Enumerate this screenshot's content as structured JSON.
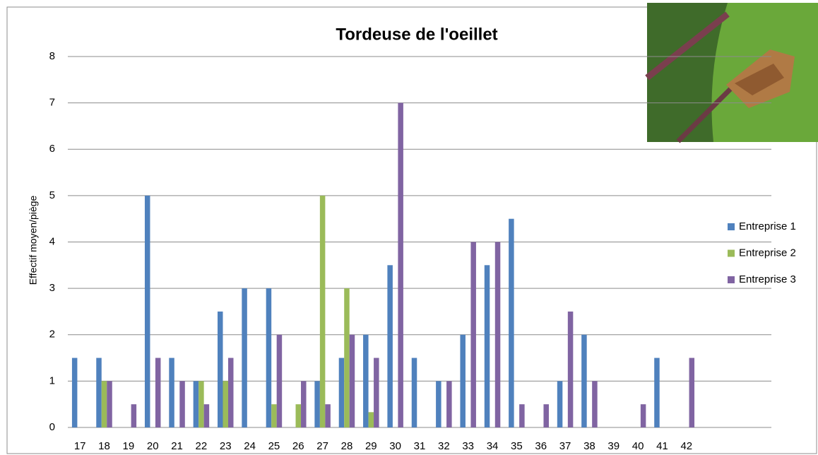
{
  "chart_data": {
    "type": "bar",
    "title": "Tordeuse de l'oeillet",
    "y_label": "Effectif moyen/piège",
    "categories": [
      "17",
      "18",
      "19",
      "20",
      "21",
      "22",
      "23",
      "24",
      "25",
      "26",
      "27",
      "28",
      "29",
      "30",
      "31",
      "32",
      "33",
      "34",
      "35",
      "36",
      "37",
      "38",
      "39",
      "40",
      "41",
      "42",
      null,
      null,
      null
    ],
    "series": [
      {
        "name": "Entreprise 1",
        "color": "#4f81bd",
        "values": [
          1.5,
          1.5,
          0,
          5,
          1.5,
          1,
          2.5,
          3,
          3,
          0,
          1,
          1.5,
          2,
          3.5,
          1.5,
          1,
          2,
          3.5,
          4.5,
          0,
          1,
          2,
          0,
          0,
          1.5,
          0,
          0,
          0,
          0
        ]
      },
      {
        "name": "Entreprise 2",
        "color": "#9bbb59",
        "values": [
          0,
          1,
          0,
          0,
          0,
          1,
          1,
          0,
          0.5,
          0.5,
          5,
          3,
          0.33,
          0,
          0,
          0,
          0,
          0,
          0,
          0,
          0,
          0,
          0,
          0,
          0,
          0,
          0,
          0,
          0
        ]
      },
      {
        "name": "Entreprise 3",
        "color": "#8064a2",
        "values": [
          0,
          1,
          0.5,
          1.5,
          1,
          0.5,
          1.5,
          0,
          2,
          1,
          0.5,
          2,
          1.5,
          7,
          0,
          1,
          4,
          4,
          0.5,
          0.5,
          2.5,
          1,
          0,
          0.5,
          0,
          1.5,
          0,
          0,
          0
        ]
      }
    ],
    "ylim": [
      0,
      8
    ],
    "yticks": [
      0,
      1,
      2,
      3,
      4,
      5,
      6,
      7,
      8
    ],
    "grid": true,
    "legend": "right"
  }
}
